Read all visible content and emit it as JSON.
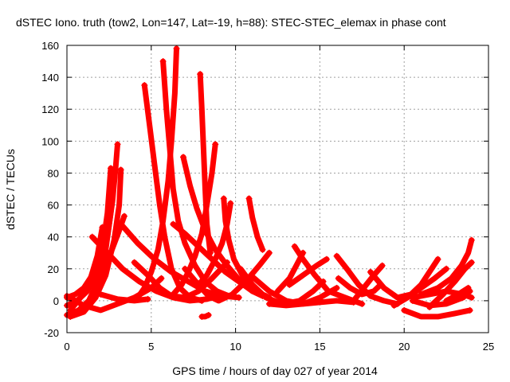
{
  "chart_data": {
    "type": "scatter",
    "title": "dSTEC Iono. truth (tow2, Lon=147, Lat=-19, h=88): STEC-STEC_elemax in phase cont",
    "xlabel": "GPS time / hours of day 027 of year 2014",
    "ylabel": "dSTEC  / TECUs",
    "xlim": [
      0,
      25
    ],
    "ylim": [
      -20,
      160
    ],
    "xticks": [
      "0",
      "5",
      "10",
      "15",
      "20",
      "25"
    ],
    "yticks": [
      "-20",
      "0",
      "20",
      "40",
      "60",
      "80",
      "100",
      "120",
      "140",
      "160"
    ],
    "grid": true,
    "marker": "+",
    "color": "#ff0000",
    "series": [
      {
        "points": [
          [
            0,
            2
          ],
          [
            0.5,
            4
          ],
          [
            1.0,
            8
          ],
          [
            1.5,
            16
          ],
          [
            2.0,
            26
          ],
          [
            2.4,
            40
          ],
          [
            2.7,
            62
          ],
          [
            2.9,
            85
          ],
          [
            3.0,
            98
          ]
        ]
      },
      {
        "points": [
          [
            0,
            -3
          ],
          [
            0.6,
            0
          ],
          [
            1.2,
            6
          ],
          [
            1.7,
            16
          ],
          [
            2.1,
            32
          ],
          [
            2.4,
            55
          ],
          [
            2.6,
            83
          ]
        ]
      },
      {
        "points": [
          [
            0,
            -9
          ],
          [
            0.7,
            -6
          ],
          [
            1.3,
            0
          ],
          [
            1.9,
            14
          ],
          [
            2.3,
            32
          ],
          [
            2.6,
            55
          ],
          [
            2.8,
            78
          ]
        ]
      },
      {
        "points": [
          [
            0.2,
            -10
          ],
          [
            1.0,
            -7
          ],
          [
            1.7,
            2
          ],
          [
            2.3,
            16
          ],
          [
            2.8,
            38
          ],
          [
            3.1,
            60
          ],
          [
            3.2,
            82
          ]
        ]
      },
      {
        "points": [
          [
            0.5,
            -8
          ],
          [
            1.3,
            0
          ],
          [
            2.0,
            14
          ],
          [
            2.6,
            30
          ],
          [
            3.1,
            44
          ],
          [
            3.4,
            53
          ]
        ]
      },
      {
        "points": [
          [
            0.2,
            -6
          ],
          [
            0.8,
            2
          ],
          [
            1.4,
            14
          ],
          [
            1.8,
            28
          ],
          [
            2.1,
            46
          ]
        ]
      },
      {
        "points": [
          [
            0,
            3
          ],
          [
            1.0,
            -3
          ],
          [
            2.0,
            -6
          ],
          [
            3.0,
            -2
          ],
          [
            4.0,
            2
          ],
          [
            5.0,
            8
          ],
          [
            5.6,
            14
          ]
        ]
      },
      {
        "points": [
          [
            1.5,
            40
          ],
          [
            2.4,
            30
          ],
          [
            3.3,
            20
          ],
          [
            4.3,
            12
          ],
          [
            5.3,
            6
          ],
          [
            6.3,
            2
          ],
          [
            7.3,
            0
          ],
          [
            8.3,
            1
          ],
          [
            9.0,
            3
          ]
        ]
      },
      {
        "points": [
          [
            2.0,
            4
          ],
          [
            3.0,
            1
          ],
          [
            4.0,
            0
          ],
          [
            4.8,
            1
          ]
        ]
      },
      {
        "points": [
          [
            3.2,
            48
          ],
          [
            4.2,
            36
          ],
          [
            5.2,
            26
          ],
          [
            6.2,
            18
          ],
          [
            7.2,
            12
          ],
          [
            8.2,
            6
          ],
          [
            9.2,
            3
          ],
          [
            10.2,
            2
          ]
        ]
      },
      {
        "points": [
          [
            4.0,
            24
          ],
          [
            4.8,
            16
          ],
          [
            5.5,
            8
          ],
          [
            6.2,
            3
          ],
          [
            7.0,
            2
          ],
          [
            7.8,
            6
          ],
          [
            8.6,
            14
          ],
          [
            9.5,
            24
          ]
        ]
      },
      {
        "points": [
          [
            4.6,
            135
          ],
          [
            4.9,
            110
          ],
          [
            5.2,
            85
          ],
          [
            5.5,
            60
          ],
          [
            5.8,
            40
          ],
          [
            6.2,
            20
          ],
          [
            6.7,
            8
          ],
          [
            7.3,
            2
          ],
          [
            8.0,
            0
          ]
        ]
      },
      {
        "points": [
          [
            5.7,
            150
          ],
          [
            5.9,
            120
          ],
          [
            6.1,
            95
          ],
          [
            6.3,
            70
          ],
          [
            6.6,
            50
          ],
          [
            7.0,
            36
          ],
          [
            7.6,
            22
          ],
          [
            8.2,
            12
          ],
          [
            8.9,
            6
          ],
          [
            9.6,
            3
          ]
        ]
      },
      {
        "points": [
          [
            6.5,
            158
          ],
          [
            6.4,
            130
          ],
          [
            6.2,
            100
          ],
          [
            6.0,
            75
          ],
          [
            5.7,
            50
          ],
          [
            5.4,
            32
          ],
          [
            5.0,
            18
          ],
          [
            4.6,
            8
          ],
          [
            4.2,
            2
          ]
        ]
      },
      {
        "points": [
          [
            6.3,
            48
          ],
          [
            7.0,
            42
          ],
          [
            7.8,
            34
          ],
          [
            8.6,
            26
          ],
          [
            9.4,
            18
          ],
          [
            10.2,
            12
          ],
          [
            11.0,
            6
          ],
          [
            11.8,
            3
          ]
        ]
      },
      {
        "points": [
          [
            6.9,
            90
          ],
          [
            7.3,
            72
          ],
          [
            7.7,
            58
          ],
          [
            8.2,
            44
          ],
          [
            8.8,
            32
          ],
          [
            9.5,
            22
          ],
          [
            10.3,
            12
          ],
          [
            11.0,
            6
          ],
          [
            11.6,
            3
          ]
        ]
      },
      {
        "points": [
          [
            7.9,
            142
          ],
          [
            8.0,
            120
          ],
          [
            8.1,
            95
          ],
          [
            8.2,
            70
          ],
          [
            8.3,
            48
          ],
          [
            8.5,
            30
          ]
        ]
      },
      {
        "points": [
          [
            8.0,
            -10
          ],
          [
            8.2,
            -10
          ],
          [
            8.4,
            -9
          ]
        ]
      },
      {
        "points": [
          [
            7.0,
            20
          ],
          [
            7.8,
            10
          ],
          [
            8.4,
            3
          ],
          [
            9.0,
            0
          ],
          [
            9.8,
            4
          ],
          [
            10.6,
            12
          ],
          [
            11.4,
            22
          ],
          [
            12.0,
            30
          ]
        ]
      },
      {
        "points": [
          [
            8.8,
            98
          ],
          [
            8.6,
            80
          ],
          [
            8.3,
            60
          ],
          [
            8.0,
            42
          ],
          [
            7.6,
            28
          ],
          [
            7.2,
            18
          ],
          [
            6.8,
            10
          ],
          [
            6.3,
            4
          ]
        ]
      },
      {
        "points": [
          [
            9.3,
            64
          ],
          [
            9.4,
            50
          ],
          [
            9.6,
            38
          ],
          [
            9.9,
            26
          ],
          [
            10.5,
            14
          ],
          [
            11.2,
            6
          ],
          [
            12.0,
            2
          ]
        ]
      },
      {
        "points": [
          [
            9.7,
            61
          ],
          [
            9.5,
            48
          ],
          [
            9.2,
            36
          ],
          [
            8.8,
            26
          ],
          [
            8.3,
            16
          ],
          [
            7.8,
            10
          ]
        ]
      },
      {
        "points": [
          [
            10.3,
            20
          ],
          [
            11.0,
            10
          ],
          [
            11.8,
            2
          ],
          [
            12.8,
            -2
          ],
          [
            13.8,
            0
          ],
          [
            14.6,
            6
          ],
          [
            15.2,
            12
          ]
        ]
      },
      {
        "points": [
          [
            10.8,
            64
          ],
          [
            11.0,
            52
          ],
          [
            11.3,
            40
          ],
          [
            11.6,
            32
          ]
        ]
      },
      {
        "points": [
          [
            11.0,
            15
          ],
          [
            12.0,
            6
          ],
          [
            13.0,
            0
          ],
          [
            14.0,
            -2
          ],
          [
            15.0,
            2
          ],
          [
            16.0,
            8
          ]
        ]
      },
      {
        "points": [
          [
            12.5,
            6
          ],
          [
            13.2,
            14
          ],
          [
            13.6,
            22
          ],
          [
            14.0,
            30
          ]
        ]
      },
      {
        "points": [
          [
            13.5,
            34
          ],
          [
            14.0,
            26
          ],
          [
            14.7,
            16
          ],
          [
            15.5,
            6
          ],
          [
            16.5,
            2
          ],
          [
            17.5,
            -2
          ]
        ]
      },
      {
        "points": [
          [
            13.2,
            10
          ],
          [
            14.0,
            16
          ],
          [
            14.8,
            22
          ],
          [
            15.4,
            26
          ]
        ]
      },
      {
        "points": [
          [
            12.0,
            -2
          ],
          [
            13.0,
            -3
          ],
          [
            14.0,
            -2
          ],
          [
            15.0,
            -1
          ],
          [
            16.0,
            0
          ],
          [
            17.0,
            -1
          ]
        ]
      },
      {
        "points": [
          [
            16.0,
            28
          ],
          [
            16.6,
            20
          ],
          [
            17.3,
            10
          ],
          [
            18.0,
            3
          ],
          [
            18.8,
            0
          ],
          [
            19.6,
            -2
          ]
        ]
      },
      {
        "points": [
          [
            16.1,
            14
          ],
          [
            16.8,
            8
          ],
          [
            17.5,
            4
          ],
          [
            18.2,
            6
          ],
          [
            18.6,
            10
          ]
        ]
      },
      {
        "points": [
          [
            17.0,
            0
          ],
          [
            17.6,
            8
          ],
          [
            18.2,
            16
          ],
          [
            18.7,
            22
          ]
        ]
      },
      {
        "points": [
          [
            18.0,
            18
          ],
          [
            18.8,
            8
          ],
          [
            19.6,
            2
          ],
          [
            20.4,
            4
          ],
          [
            21.0,
            10
          ],
          [
            21.5,
            18
          ],
          [
            22.0,
            26
          ]
        ]
      },
      {
        "points": [
          [
            19.4,
            -3
          ],
          [
            20.2,
            2
          ],
          [
            21.0,
            8
          ],
          [
            21.8,
            14
          ],
          [
            22.5,
            20
          ]
        ]
      },
      {
        "points": [
          [
            20.0,
            -6
          ],
          [
            21.0,
            -10
          ],
          [
            22.0,
            -10
          ],
          [
            23.0,
            -8
          ],
          [
            23.9,
            -6
          ]
        ]
      },
      {
        "points": [
          [
            20.5,
            0
          ],
          [
            21.5,
            -3
          ],
          [
            22.5,
            -2
          ],
          [
            23.5,
            2
          ],
          [
            23.9,
            6
          ]
        ]
      },
      {
        "points": [
          [
            21.0,
            4
          ],
          [
            22.0,
            8
          ],
          [
            22.8,
            14
          ],
          [
            23.4,
            22
          ],
          [
            23.8,
            30
          ],
          [
            24.0,
            38
          ]
        ]
      },
      {
        "points": [
          [
            20.5,
            2
          ],
          [
            21.5,
            4
          ],
          [
            22.5,
            6
          ],
          [
            23.5,
            4
          ],
          [
            24.0,
            2
          ]
        ]
      },
      {
        "points": [
          [
            21.5,
            -4
          ],
          [
            22.3,
            4
          ],
          [
            23.0,
            12
          ],
          [
            23.6,
            20
          ],
          [
            24.0,
            24
          ]
        ]
      },
      {
        "points": [
          [
            22.5,
            0
          ],
          [
            23.2,
            4
          ],
          [
            23.8,
            8
          ]
        ]
      }
    ]
  }
}
